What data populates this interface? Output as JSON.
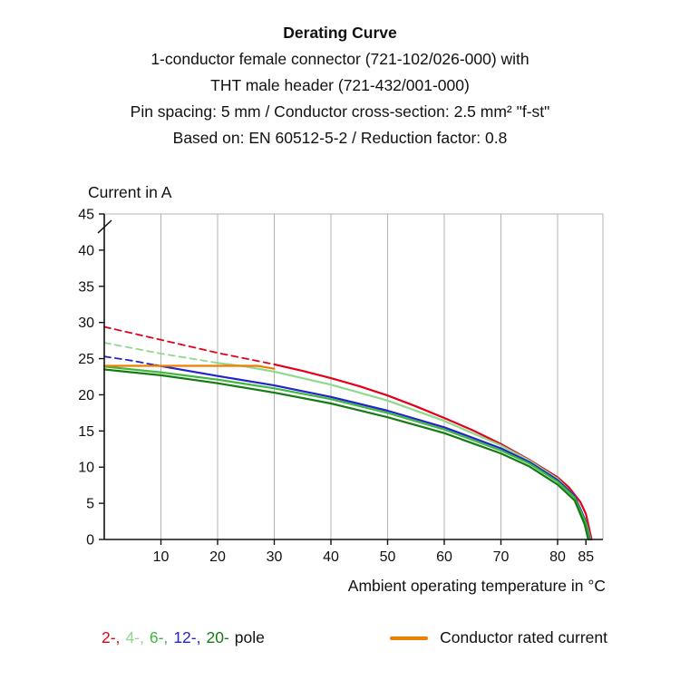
{
  "title": "Derating Curve",
  "subtitle_lines": [
    "1-conductor female connector (721-102/026-000) with",
    "THT male header (721-432/001-000)",
    "Pin spacing: 5 mm / Conductor cross-section: 2.5 mm² \"f-st\"",
    "Based on: EN 60512-5-2 / Reduction factor: 0.8"
  ],
  "y_axis_label": "Current in A",
  "x_axis_label": "Ambient operating temperature in °C",
  "legend": {
    "poles": [
      {
        "label": "2-,",
        "color": "#e2001a"
      },
      {
        "label": "4-,",
        "color": "#8fd98f"
      },
      {
        "label": "6-,",
        "color": "#3cb83c"
      },
      {
        "label": "12-,",
        "color": "#2323cc"
      },
      {
        "label": "20-",
        "color": "#147a14"
      },
      {
        "label": "pole",
        "color": "#111111"
      }
    ],
    "rated": {
      "label": "Conductor rated current",
      "color": "#ef7d00"
    }
  },
  "chart_data": {
    "type": "line",
    "title": "Derating Curve",
    "xlabel": "Ambient operating temperature in °C",
    "ylabel": "Current in A",
    "xlim": [
      0,
      88
    ],
    "ylim": [
      0,
      45
    ],
    "x_ticks": [
      10,
      20,
      30,
      40,
      50,
      60,
      70,
      80,
      85
    ],
    "y_ticks": [
      0,
      5,
      10,
      15,
      20,
      25,
      30,
      35,
      40,
      45
    ],
    "grid": "vertical",
    "axis_color": "#111111",
    "grid_color": "#b3b3b3",
    "series": [
      {
        "name": "2-pole",
        "color": "#e2001a",
        "segments": [
          {
            "style": "dashed",
            "points": [
              [
                0,
                29.4
              ],
              [
                10,
                27.6
              ],
              [
                20,
                25.8
              ],
              [
                30,
                24.2
              ]
            ]
          },
          {
            "style": "solid",
            "points": [
              [
                30,
                24.2
              ],
              [
                35,
                23.3
              ],
              [
                40,
                22.3
              ],
              [
                45,
                21.2
              ],
              [
                50,
                19.9
              ],
              [
                55,
                18.4
              ],
              [
                60,
                16.8
              ],
              [
                65,
                15.1
              ],
              [
                70,
                13.2
              ],
              [
                75,
                11.0
              ],
              [
                80,
                8.6
              ],
              [
                82,
                7.2
              ],
              [
                84,
                5.2
              ],
              [
                85,
                3.5
              ],
              [
                86,
                0
              ]
            ]
          }
        ]
      },
      {
        "name": "4-pole",
        "color": "#8fd98f",
        "segments": [
          {
            "style": "dashed",
            "points": [
              [
                0,
                27.2
              ],
              [
                10,
                25.7
              ],
              [
                20,
                24.4
              ]
            ]
          },
          {
            "style": "solid",
            "points": [
              [
                20,
                24.4
              ],
              [
                25,
                23.9
              ],
              [
                30,
                23.2
              ],
              [
                40,
                21.4
              ],
              [
                50,
                19.2
              ],
              [
                60,
                16.4
              ],
              [
                70,
                13.0
              ],
              [
                75,
                10.9
              ],
              [
                80,
                8.4
              ],
              [
                83,
                6.0
              ],
              [
                85,
                2.5
              ],
              [
                85.8,
                0
              ]
            ]
          }
        ]
      },
      {
        "name": "12-pole",
        "color": "#2323cc",
        "segments": [
          {
            "style": "dashed",
            "points": [
              [
                0,
                25.3
              ],
              [
                5,
                24.7
              ],
              [
                9,
                24.1
              ]
            ]
          },
          {
            "style": "solid",
            "points": [
              [
                9,
                24.1
              ],
              [
                20,
                22.6
              ],
              [
                30,
                21.3
              ],
              [
                40,
                19.7
              ],
              [
                50,
                17.8
              ],
              [
                60,
                15.5
              ],
              [
                70,
                12.6
              ],
              [
                75,
                10.7
              ],
              [
                80,
                8.2
              ],
              [
                83,
                6.0
              ],
              [
                85,
                2.4
              ],
              [
                85.7,
                0
              ]
            ]
          }
        ]
      },
      {
        "name": "6-pole",
        "color": "#3cb83c",
        "segments": [
          {
            "style": "solid",
            "points": [
              [
                0,
                23.9
              ],
              [
                10,
                23.1
              ],
              [
                20,
                22.1
              ],
              [
                30,
                20.9
              ],
              [
                40,
                19.4
              ],
              [
                50,
                17.5
              ],
              [
                60,
                15.2
              ],
              [
                70,
                12.3
              ],
              [
                75,
                10.5
              ],
              [
                80,
                8.0
              ],
              [
                83,
                5.8
              ],
              [
                85,
                2.2
              ],
              [
                85.6,
                0
              ]
            ]
          }
        ]
      },
      {
        "name": "20-pole",
        "color": "#147a14",
        "segments": [
          {
            "style": "solid",
            "points": [
              [
                0,
                23.5
              ],
              [
                10,
                22.7
              ],
              [
                20,
                21.6
              ],
              [
                30,
                20.3
              ],
              [
                40,
                18.8
              ],
              [
                50,
                16.9
              ],
              [
                60,
                14.7
              ],
              [
                70,
                11.9
              ],
              [
                75,
                10.1
              ],
              [
                80,
                7.6
              ],
              [
                83,
                5.4
              ],
              [
                84.8,
                2.0
              ],
              [
                85.4,
                0
              ]
            ]
          }
        ]
      },
      {
        "name": "Conductor rated current",
        "color": "#ef7d00",
        "segments": [
          {
            "style": "solid",
            "points": [
              [
                0,
                24.0
              ],
              [
                27,
                24.0
              ],
              [
                30,
                23.6
              ]
            ]
          }
        ]
      }
    ]
  }
}
